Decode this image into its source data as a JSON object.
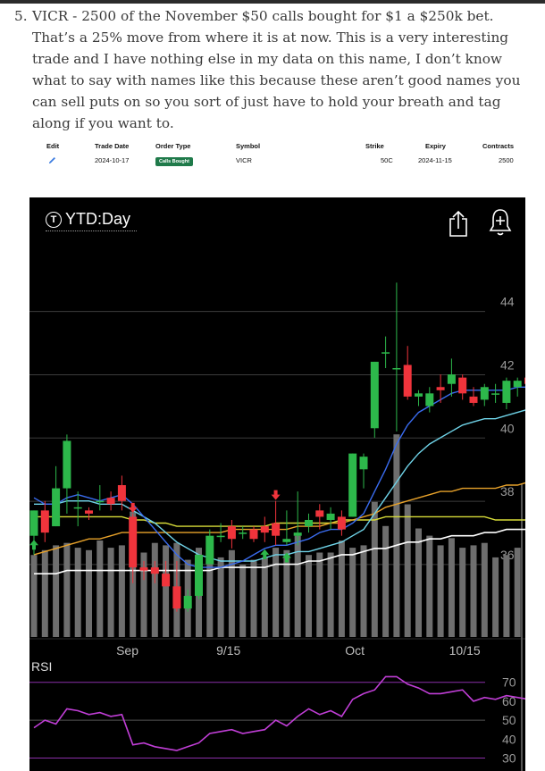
{
  "article": {
    "item_number": "5.",
    "text": "VICR - 2500 of the November $50 calls bought for $1 a $250k bet. That’s a 25% move from where it is at now. This is a very interesting trade and I have nothing else in my data on this name, I don’t know what to say with names like this because these aren’t good names you can sell puts on so you sort of just have to hold your breath and tag along if you want to."
  },
  "trade_table": {
    "headers": {
      "edit": "Edit",
      "trade_date": "Trade Date",
      "order_type": "Order Type",
      "symbol": "Symbol",
      "strike": "Strike",
      "expiry": "Expiry",
      "contracts": "Contracts"
    },
    "row": {
      "trade_date": "2024-10-17",
      "order_type": "Calls Bought",
      "symbol": "VICR",
      "strike": "50C",
      "expiry": "2024-11-15",
      "contracts": "2500"
    },
    "edit_icon": "pencil-icon",
    "badge_color": "#1f7a4a"
  },
  "chart_header": {
    "title": "YTD:Day",
    "left_icon": "tradingview-t-icon",
    "share_icon": "share-icon",
    "add_alert_icon": "add-alert-icon"
  },
  "chart_data": {
    "type": "candlestick",
    "y_ticks": [
      "44",
      "42",
      "40",
      "38",
      "36"
    ],
    "x_labels": [
      "Sep",
      "9/15",
      "Oct",
      "10/15"
    ],
    "ylim": [
      33.4,
      45.6
    ],
    "colors": {
      "up": "#2db84b",
      "down": "#f0343c",
      "volume": "#6e6e6e",
      "blue_ma": "#3a6cf0",
      "cyan_ma": "#6fd3e8",
      "orange_ma": "#e8a22a",
      "yellow_ma": "#d7dc39",
      "white_ma": "#ffffff",
      "rsi": "#c03ed6",
      "current_price_line": "#2db84b"
    },
    "candles": [
      {
        "o": 36.6,
        "h": 37.4,
        "l": 36.0,
        "c": 37.4
      },
      {
        "o": 37.4,
        "h": 37.7,
        "l": 36.4,
        "c": 36.7
      },
      {
        "o": 36.9,
        "h": 38.8,
        "l": 36.9,
        "c": 38.1
      },
      {
        "o": 38.1,
        "h": 39.8,
        "l": 37.3,
        "c": 39.6
      },
      {
        "o": 37.5,
        "h": 38.0,
        "l": 36.9,
        "c": 37.5
      },
      {
        "o": 37.4,
        "h": 37.5,
        "l": 37.1,
        "c": 37.3
      },
      {
        "o": 37.7,
        "h": 38.2,
        "l": 37.4,
        "c": 37.7
      },
      {
        "o": 37.8,
        "h": 38.0,
        "l": 37.4,
        "c": 37.6
      },
      {
        "o": 38.2,
        "h": 38.5,
        "l": 37.4,
        "c": 37.7
      },
      {
        "o": 37.2,
        "h": 37.3,
        "l": 35.1,
        "c": 35.6
      },
      {
        "o": 35.6,
        "h": 35.8,
        "l": 35.2,
        "c": 35.5
      },
      {
        "o": 35.6,
        "h": 35.8,
        "l": 35.1,
        "c": 35.4
      },
      {
        "o": 35.4,
        "h": 35.8,
        "l": 35.0,
        "c": 35.0
      },
      {
        "o": 35.0,
        "h": 35.8,
        "l": 34.2,
        "c": 34.3
      },
      {
        "o": 34.3,
        "h": 34.9,
        "l": 34.2,
        "c": 34.7
      },
      {
        "o": 34.7,
        "h": 36.0,
        "l": 34.6,
        "c": 36.0
      },
      {
        "o": 35.7,
        "h": 36.8,
        "l": 35.7,
        "c": 36.6
      },
      {
        "o": 36.6,
        "h": 37.0,
        "l": 36.4,
        "c": 36.6
      },
      {
        "o": 36.9,
        "h": 37.1,
        "l": 36.2,
        "c": 36.5
      },
      {
        "o": 36.7,
        "h": 36.9,
        "l": 36.5,
        "c": 36.7
      },
      {
        "o": 36.8,
        "h": 36.9,
        "l": 36.4,
        "c": 36.5
      },
      {
        "o": 36.9,
        "h": 37.2,
        "l": 36.4,
        "c": 36.7
      },
      {
        "o": 37.0,
        "h": 37.7,
        "l": 36.3,
        "c": 36.6
      },
      {
        "o": 36.4,
        "h": 37.4,
        "l": 36.3,
        "c": 36.5
      },
      {
        "o": 36.6,
        "h": 38.0,
        "l": 36.3,
        "c": 36.7
      },
      {
        "o": 36.9,
        "h": 37.3,
        "l": 36.7,
        "c": 37.1
      },
      {
        "o": 37.4,
        "h": 37.6,
        "l": 36.8,
        "c": 37.2
      },
      {
        "o": 37.1,
        "h": 37.5,
        "l": 36.8,
        "c": 37.3
      },
      {
        "o": 37.2,
        "h": 37.4,
        "l": 36.6,
        "c": 36.8
      },
      {
        "o": 37.2,
        "h": 39.2,
        "l": 37.2,
        "c": 39.2
      },
      {
        "o": 38.7,
        "h": 39.2,
        "l": 38.1,
        "c": 39.1
      },
      {
        "o": 40.0,
        "h": 42.1,
        "l": 39.7,
        "c": 42.1
      },
      {
        "o": 42.4,
        "h": 42.9,
        "l": 41.9,
        "c": 42.4
      },
      {
        "o": 41.9,
        "h": 44.6,
        "l": 39.9,
        "c": 41.9
      },
      {
        "o": 42.0,
        "h": 42.6,
        "l": 40.9,
        "c": 41.0
      },
      {
        "o": 41.0,
        "h": 41.2,
        "l": 40.7,
        "c": 41.1
      },
      {
        "o": 40.7,
        "h": 41.3,
        "l": 40.5,
        "c": 41.1
      },
      {
        "o": 41.3,
        "h": 41.7,
        "l": 40.8,
        "c": 41.2
      },
      {
        "o": 41.4,
        "h": 42.2,
        "l": 41.0,
        "c": 41.7
      },
      {
        "o": 41.6,
        "h": 41.7,
        "l": 40.9,
        "c": 41.1
      },
      {
        "o": 41.0,
        "h": 41.3,
        "l": 40.7,
        "c": 40.8
      },
      {
        "o": 40.9,
        "h": 41.4,
        "l": 40.7,
        "c": 41.3
      },
      {
        "o": 41.1,
        "h": 41.4,
        "l": 40.8,
        "c": 41.1
      },
      {
        "o": 40.8,
        "h": 41.6,
        "l": 40.6,
        "c": 41.5
      },
      {
        "o": 41.3,
        "h": 41.6,
        "l": 41.0,
        "c": 41.5
      },
      {
        "o": 41.6,
        "h": 41.6,
        "l": 41.2,
        "c": 41.4
      },
      {
        "o": 41.6,
        "h": 41.8,
        "l": 41.0,
        "c": 41.2
      },
      {
        "o": 42.2,
        "h": 42.5,
        "l": 40.2,
        "c": 40.3
      },
      {
        "o": 40.2,
        "h": 41.0,
        "l": 39.9,
        "c": 40.9
      }
    ],
    "volume": [
      34,
      36,
      38,
      39,
      37,
      36,
      40,
      37,
      38,
      52,
      35,
      39,
      38,
      39,
      32,
      37,
      36,
      33,
      36,
      30,
      32,
      33,
      37,
      36,
      42,
      34,
      35,
      35,
      40,
      37,
      38,
      56,
      46,
      84,
      55,
      45,
      42,
      38,
      41,
      37,
      38,
      39,
      33,
      34,
      37,
      36,
      33,
      41,
      36
    ],
    "ma_blue": [
      37.8,
      37.6,
      37.6,
      37.8,
      37.9,
      37.8,
      37.7,
      37.8,
      37.9,
      37.6,
      37.2,
      36.8,
      36.4,
      36.0,
      35.7,
      35.6,
      35.6,
      35.6,
      35.7,
      35.8,
      36.0,
      36.2,
      36.3,
      36.3,
      36.4,
      36.5,
      36.7,
      36.8,
      36.8,
      37.0,
      37.3,
      38.0,
      38.7,
      39.5,
      40.1,
      40.5,
      40.7,
      40.9,
      41.1,
      41.2,
      41.2,
      41.2,
      41.2,
      41.2,
      41.3,
      41.3,
      41.4,
      41.3,
      41.1
    ],
    "ma_cyan": [
      37.6,
      37.6,
      37.6,
      37.7,
      37.7,
      37.7,
      37.6,
      37.6,
      37.6,
      37.4,
      37.2,
      37.0,
      36.7,
      36.4,
      36.2,
      36.0,
      35.9,
      35.8,
      35.8,
      35.8,
      35.8,
      35.9,
      36.0,
      36.0,
      36.1,
      36.1,
      36.2,
      36.3,
      36.4,
      36.6,
      36.8,
      37.3,
      37.8,
      38.3,
      38.8,
      39.2,
      39.5,
      39.7,
      39.9,
      40.1,
      40.2,
      40.3,
      40.3,
      40.4,
      40.5,
      40.6,
      40.6,
      40.6,
      40.7
    ],
    "ma_orange": [
      36.0,
      36.1,
      36.2,
      36.3,
      36.4,
      36.5,
      36.5,
      36.6,
      36.7,
      36.7,
      36.7,
      36.7,
      36.7,
      36.7,
      36.7,
      36.7,
      36.7,
      36.7,
      36.8,
      36.8,
      36.8,
      36.8,
      36.8,
      36.8,
      36.9,
      36.9,
      36.9,
      37.0,
      37.0,
      37.1,
      37.2,
      37.3,
      37.5,
      37.6,
      37.7,
      37.8,
      37.9,
      38.0,
      38.0,
      38.1,
      38.1,
      38.1,
      38.1,
      38.2,
      38.2,
      38.3,
      38.4,
      38.5,
      38.6
    ],
    "ma_yellow": [
      37.2,
      37.2,
      37.2,
      37.2,
      37.2,
      37.2,
      37.2,
      37.2,
      37.2,
      37.1,
      37.1,
      37.0,
      37.0,
      36.9,
      36.9,
      36.9,
      36.9,
      36.9,
      36.9,
      36.9,
      36.9,
      36.9,
      37.0,
      37.0,
      37.0,
      37.0,
      37.0,
      37.0,
      37.1,
      37.1,
      37.1,
      37.1,
      37.2,
      37.2,
      37.2,
      37.2,
      37.2,
      37.2,
      37.2,
      37.2,
      37.2,
      37.2,
      37.1,
      37.1,
      37.1,
      37.1,
      37.0,
      37.0,
      37.0
    ],
    "ma_white": [
      35.4,
      35.4,
      35.4,
      35.5,
      35.5,
      35.5,
      35.5,
      35.5,
      35.5,
      35.5,
      35.5,
      35.5,
      35.5,
      35.5,
      35.5,
      35.5,
      35.5,
      35.6,
      35.6,
      35.6,
      35.6,
      35.6,
      35.7,
      35.7,
      35.7,
      35.8,
      35.8,
      35.9,
      36.0,
      36.0,
      36.1,
      36.2,
      36.2,
      36.3,
      36.4,
      36.4,
      36.5,
      36.5,
      36.6,
      36.6,
      36.6,
      36.7,
      36.7,
      36.8,
      36.8,
      36.8,
      36.9,
      36.9,
      37.0
    ],
    "rsi": {
      "ticks": [
        "70",
        "60",
        "50",
        "40",
        "30"
      ],
      "ylim": [
        26,
        76
      ],
      "bands": [
        70,
        50,
        30
      ],
      "values": [
        46,
        50,
        48,
        56,
        55,
        53,
        54,
        52,
        53,
        37,
        38,
        36,
        35,
        34,
        36,
        38,
        43,
        44,
        45,
        43,
        44,
        45,
        50,
        47,
        52,
        56,
        53,
        55,
        52,
        61,
        64,
        66,
        73,
        73,
        69,
        67,
        64,
        64,
        65,
        66,
        60,
        62,
        61,
        63,
        62,
        61,
        60,
        50,
        54
      ]
    },
    "current_price": 40.9,
    "signal_arrows": [
      {
        "i": 0,
        "dir": "up",
        "color": "#2db84b",
        "price": 36.3
      },
      {
        "i": 9,
        "dir": "down",
        "color": "#f0343c",
        "price": 37.5
      },
      {
        "i": 22,
        "dir": "down",
        "color": "#f0343c",
        "price": 37.9
      },
      {
        "i": 21,
        "dir": "up",
        "color": "#2db84b",
        "price": 36.0
      },
      {
        "i": 23,
        "dir": "up",
        "color": "#2db84b",
        "price": 35.9
      }
    ]
  }
}
